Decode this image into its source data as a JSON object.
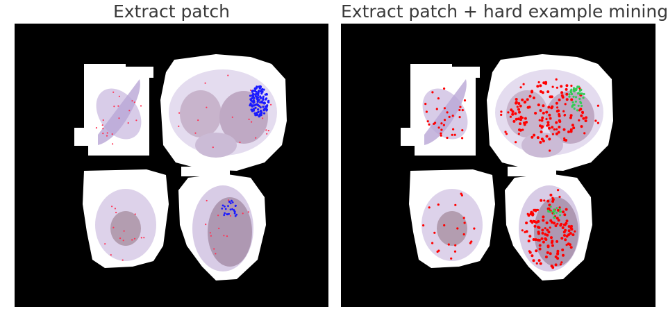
{
  "panels": [
    {
      "id": "left",
      "title": "Extract patch",
      "markers": [
        "scattered-red-points",
        "blue-cluster"
      ],
      "colors": {
        "sparse": "#ff3355",
        "cluster": "#1a1aff"
      }
    },
    {
      "id": "right",
      "title": "Extract patch + hard example mining",
      "markers": [
        "dense-red-points",
        "green-cluster"
      ],
      "colors": {
        "sparse": "#ff0000",
        "cluster": "#33cc55"
      }
    }
  ],
  "colors": {
    "background": "#000000",
    "tissue_mask": "#ffffff",
    "tissue_stain": "#b9a6d6",
    "tumor_stain": "#a08aa8"
  }
}
